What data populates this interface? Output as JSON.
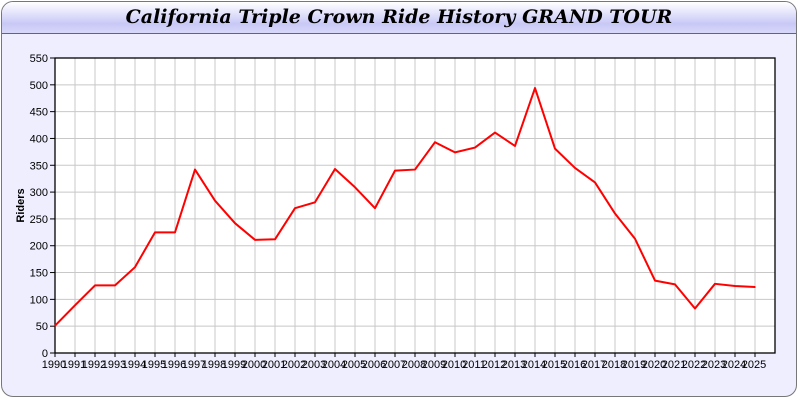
{
  "chart_data": {
    "type": "line",
    "title": "California Triple Crown Ride History GRAND TOUR",
    "xlabel": "",
    "ylabel": "Riders",
    "ylim": [
      0,
      550
    ],
    "yticks": [
      0,
      50,
      100,
      150,
      200,
      250,
      300,
      350,
      400,
      450,
      500,
      550
    ],
    "grid": true,
    "line_color": "#ff0000",
    "x": [
      1990,
      1991,
      1992,
      1993,
      1994,
      1995,
      1996,
      1997,
      1998,
      1999,
      2000,
      2001,
      2002,
      2003,
      2004,
      2005,
      2006,
      2007,
      2008,
      2009,
      2010,
      2011,
      2012,
      2013,
      2014,
      2015,
      2016,
      2017,
      2018,
      2019,
      2020,
      2021,
      2022,
      2023,
      2024,
      2025
    ],
    "series": [
      {
        "values": [
          51,
          89,
          126,
          126,
          160,
          225,
          225,
          342,
          284,
          242,
          211,
          212,
          270,
          281,
          343,
          309,
          270,
          340,
          342,
          393,
          374,
          383,
          411,
          386,
          494,
          381,
          345,
          318,
          260,
          213,
          135,
          128,
          83,
          129,
          125,
          123
        ]
      }
    ]
  }
}
